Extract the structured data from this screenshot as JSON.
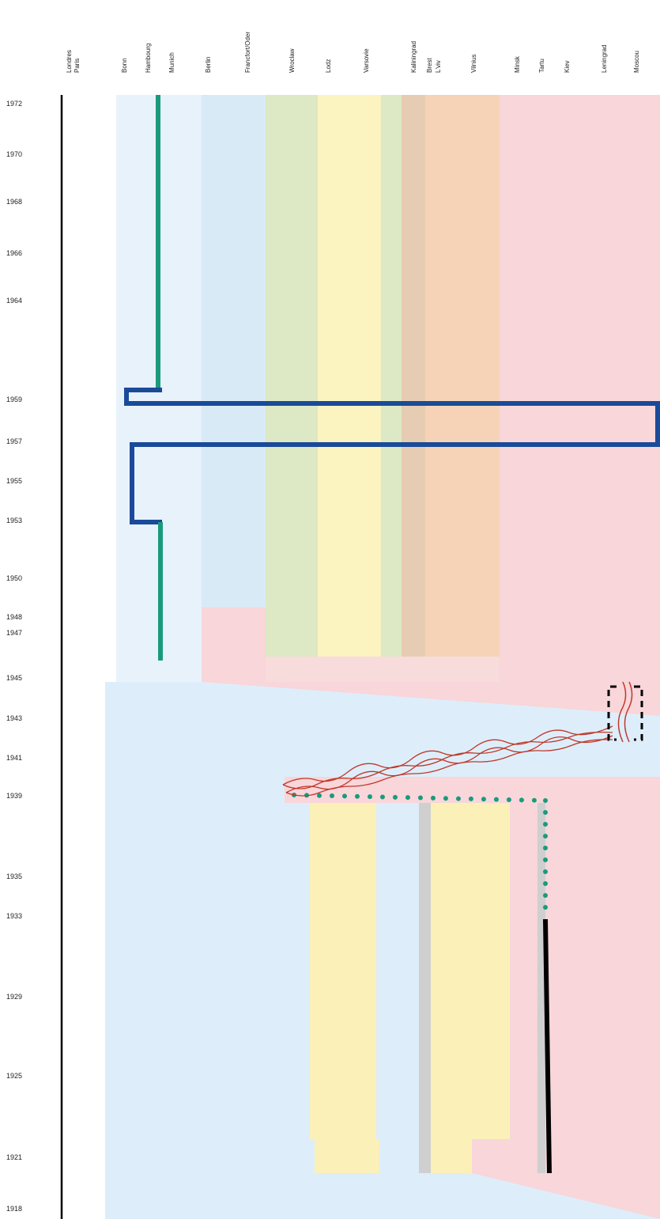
{
  "cities": [
    "Londres",
    "Paris",
    "Bonn",
    "Hambourg",
    "Munich",
    "Berlin",
    "Francfort/Oder",
    "Wroclaw",
    "Lodz",
    "Varsovie",
    "Kaliningrad",
    "Brest",
    "L'viv",
    "Vilnius",
    "Minsk",
    "Tartu",
    "Kiev",
    "Leningrad",
    "Moscou"
  ],
  "years": [
    "1972",
    "1970",
    "1968",
    "1966",
    "1964",
    "1959",
    "1957",
    "1955",
    "1953",
    "1950",
    "1948",
    "1947",
    "1945",
    "1943",
    "1941",
    "1939",
    "1935",
    "1933",
    "1929",
    "1925",
    "1921",
    "1918"
  ]
}
